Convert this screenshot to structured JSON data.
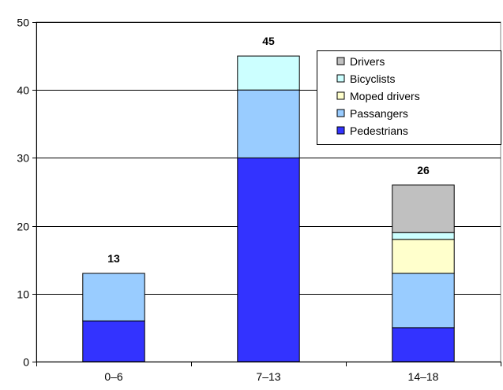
{
  "chart_data": {
    "type": "bar",
    "stacked": true,
    "categories": [
      "0–6",
      "7–13",
      "14–18"
    ],
    "series": [
      {
        "name": "Pedestrians",
        "color": "#3333ff",
        "values": [
          6,
          30,
          5
        ]
      },
      {
        "name": "Passangers",
        "color": "#99ccff",
        "values": [
          7,
          10,
          8
        ]
      },
      {
        "name": "Moped drivers",
        "color": "#ffffcc",
        "values": [
          0,
          0,
          5
        ]
      },
      {
        "name": "Bicyclists",
        "color": "#ccffff",
        "values": [
          0,
          5,
          1
        ]
      },
      {
        "name": "Drivers",
        "color": "#c0c0c0",
        "values": [
          0,
          0,
          7
        ]
      }
    ],
    "totals": [
      13,
      45,
      26
    ],
    "ylim": [
      0,
      50
    ],
    "yticks": [
      0,
      10,
      20,
      30,
      40,
      50
    ],
    "grid": true,
    "legend_position": "top-right",
    "legend_order": [
      "Drivers",
      "Bicyclists",
      "Moped drivers",
      "Passangers",
      "Pedestrians"
    ],
    "title": "",
    "xlabel": "",
    "ylabel": ""
  }
}
